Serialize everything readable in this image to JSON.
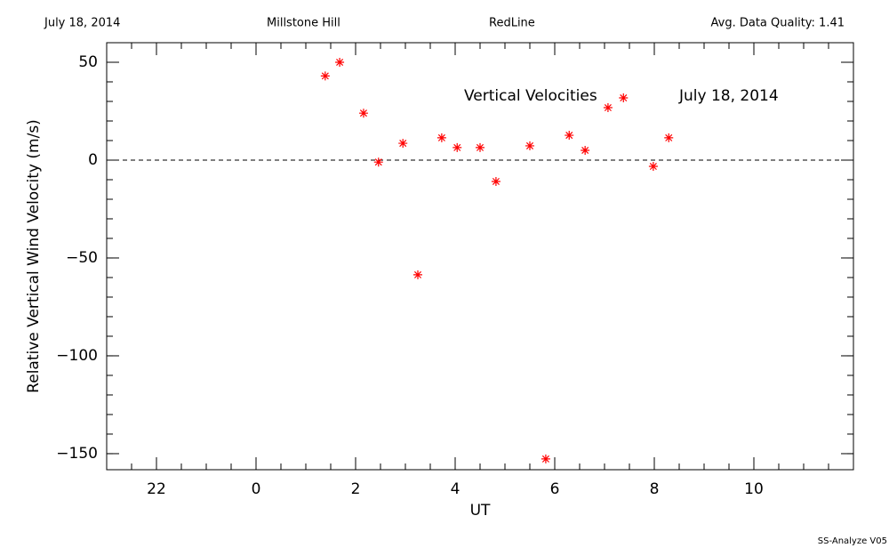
{
  "chart_data": {
    "type": "scatter",
    "header": {
      "date": "July 18, 2014",
      "site": "Millstone Hill",
      "channel": "RedLine",
      "quality": "Avg. Data Quality: 1.41"
    },
    "title": "Vertical Velocities",
    "annotation": "July 18, 2014",
    "xlabel": "UT",
    "ylabel": "Relative Vertical Wind Velocity (m/s)",
    "footer": "SS-Analyze V05",
    "x": [
      25.39,
      25.68,
      26.16,
      26.46,
      26.95,
      27.25,
      27.73,
      28.04,
      28.5,
      28.82,
      29.5,
      29.82,
      30.29,
      30.61,
      31.07,
      31.38,
      31.98,
      32.29
    ],
    "values": [
      43,
      50,
      24,
      -1,
      8.6,
      -58.6,
      11.4,
      6.4,
      6.4,
      -10.9,
      7.3,
      -152.7,
      12.7,
      5,
      26.8,
      31.8,
      -3.2,
      11.4
    ],
    "color": "#ff0000",
    "xlim": [
      21,
      36
    ],
    "xticks": [
      {
        "value": 22,
        "label": "22"
      },
      {
        "value": 24,
        "label": "0"
      },
      {
        "value": 26,
        "label": "2"
      },
      {
        "value": 28,
        "label": "4"
      },
      {
        "value": 30,
        "label": "6"
      },
      {
        "value": 32,
        "label": "8"
      },
      {
        "value": 34,
        "label": "10"
      }
    ],
    "ylim": [
      -158.2,
      60
    ],
    "yticks": [
      {
        "value": -150,
        "label": "−150"
      },
      {
        "value": -100,
        "label": "−100"
      },
      {
        "value": -50,
        "label": "−50"
      },
      0,
      50
    ],
    "reference_line": 0
  }
}
